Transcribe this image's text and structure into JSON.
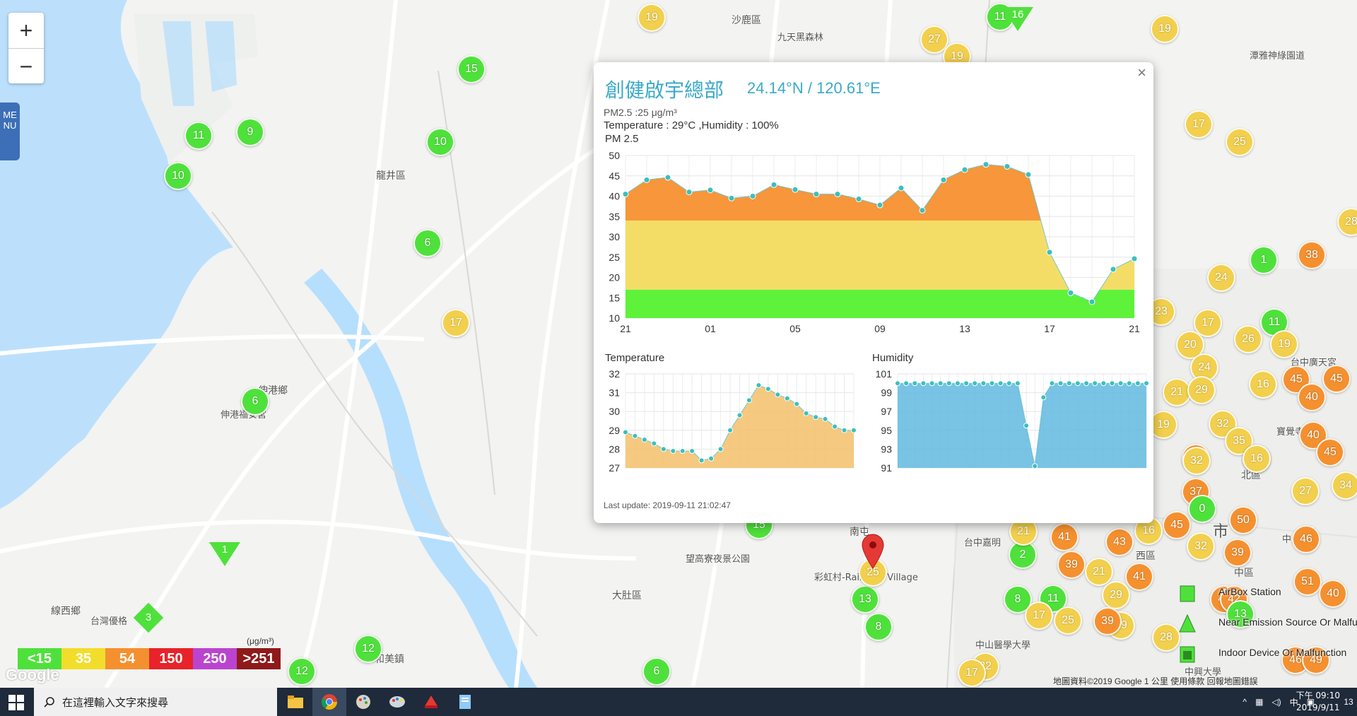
{
  "map": {
    "zoom_in_label": "+",
    "zoom_out_label": "−",
    "menu_label": "MENU",
    "places": [
      {
        "id": "shalu",
        "text": "沙鹿區"
      },
      {
        "id": "jiuhei",
        "text": "九天黑森林"
      },
      {
        "id": "longjing",
        "text": "龍井區"
      },
      {
        "id": "shengang",
        "text": "伸港鄉"
      },
      {
        "id": "shengang2",
        "text": "伸港福安宮"
      },
      {
        "id": "xianxi",
        "text": "線西鄉"
      },
      {
        "id": "taiwanyou",
        "text": "台灣優格"
      },
      {
        "id": "hemei",
        "text": "和美鎮"
      },
      {
        "id": "dadu",
        "text": "大肚區"
      },
      {
        "id": "wanggao",
        "text": "望高寮夜景公園"
      },
      {
        "id": "rainbow",
        "text": "彩虹村-Rainbow Village"
      },
      {
        "id": "nan",
        "text": "南屯"
      },
      {
        "id": "xiqu",
        "text": "西區"
      },
      {
        "id": "beiqu",
        "text": "北區"
      },
      {
        "id": "shi",
        "text": "市"
      },
      {
        "id": "zhongqu",
        "text": "中區"
      },
      {
        "id": "taizhong_jiayi",
        "text": "台中嘉明"
      },
      {
        "id": "zhongshan",
        "text": "中山醫學大學"
      },
      {
        "id": "zhongxing",
        "text": "中興大學"
      },
      {
        "id": "baojue",
        "text": "寶覺寺"
      },
      {
        "id": "zhonggong",
        "text": "中公園"
      },
      {
        "id": "taizhongguang",
        "text": "台中廣天宮"
      },
      {
        "id": "tanya",
        "text": "潭雅神綠園道"
      }
    ],
    "markers": [
      {
        "v": "19",
        "c": "y"
      },
      {
        "v": "11",
        "c": "g"
      },
      {
        "v": "27",
        "c": "y"
      },
      {
        "v": "19",
        "c": "y"
      },
      {
        "v": "19",
        "c": "y"
      },
      {
        "v": "15",
        "c": "g"
      },
      {
        "v": "11",
        "c": "g"
      },
      {
        "v": "9",
        "c": "g"
      },
      {
        "v": "10",
        "c": "g"
      },
      {
        "v": "10",
        "c": "g"
      },
      {
        "v": "6",
        "c": "g"
      },
      {
        "v": "17",
        "c": "y"
      },
      {
        "v": "6",
        "c": "g"
      },
      {
        "v": "17",
        "c": "y"
      },
      {
        "v": "25",
        "c": "y"
      },
      {
        "v": "1",
        "c": "g"
      },
      {
        "v": "38",
        "c": "o"
      },
      {
        "v": "24",
        "c": "y"
      },
      {
        "v": "23",
        "c": "y"
      },
      {
        "v": "17",
        "c": "y"
      },
      {
        "v": "11",
        "c": "g"
      },
      {
        "v": "26",
        "c": "y"
      },
      {
        "v": "20",
        "c": "y"
      },
      {
        "v": "19",
        "c": "y"
      },
      {
        "v": "24",
        "c": "y"
      },
      {
        "v": "16",
        "c": "y"
      },
      {
        "v": "45",
        "c": "o"
      },
      {
        "v": "45",
        "c": "o"
      },
      {
        "v": "40",
        "c": "o"
      },
      {
        "v": "21",
        "c": "y"
      },
      {
        "v": "29",
        "c": "y"
      },
      {
        "v": "19",
        "c": "y"
      },
      {
        "v": "32",
        "c": "y"
      },
      {
        "v": "35",
        "c": "y"
      },
      {
        "v": "40",
        "c": "o"
      },
      {
        "v": "45",
        "c": "o"
      },
      {
        "v": "36",
        "c": "o"
      },
      {
        "v": "32",
        "c": "y"
      },
      {
        "v": "16",
        "c": "y"
      },
      {
        "v": "37",
        "c": "o"
      },
      {
        "v": "0",
        "c": "g"
      },
      {
        "v": "32",
        "c": "y"
      },
      {
        "v": "27",
        "c": "y"
      },
      {
        "v": "45",
        "c": "o"
      },
      {
        "v": "50",
        "c": "o"
      },
      {
        "v": "16",
        "c": "y"
      },
      {
        "v": "46",
        "c": "o"
      },
      {
        "v": "39",
        "c": "o"
      },
      {
        "v": "43",
        "c": "o"
      },
      {
        "v": "41",
        "c": "o"
      },
      {
        "v": "39",
        "c": "o"
      },
      {
        "v": "2",
        "c": "g"
      },
      {
        "v": "21",
        "c": "y"
      },
      {
        "v": "21",
        "c": "y"
      },
      {
        "v": "41",
        "c": "o"
      },
      {
        "v": "51",
        "c": "o"
      },
      {
        "v": "40",
        "c": "o"
      },
      {
        "v": "29",
        "c": "y"
      },
      {
        "v": "29",
        "c": "y"
      },
      {
        "v": "39",
        "c": "o"
      },
      {
        "v": "28",
        "c": "y"
      },
      {
        "v": "42",
        "c": "o"
      },
      {
        "v": "8",
        "c": "g"
      },
      {
        "v": "11",
        "c": "g"
      },
      {
        "v": "17",
        "c": "y"
      },
      {
        "v": "25",
        "c": "y"
      },
      {
        "v": "13",
        "c": "g"
      },
      {
        "v": "8",
        "c": "g"
      },
      {
        "v": "25",
        "c": "y"
      },
      {
        "v": "15",
        "c": "g"
      },
      {
        "v": "12",
        "c": "g"
      },
      {
        "v": "12",
        "c": "g"
      },
      {
        "v": "6",
        "c": "g"
      },
      {
        "v": "22",
        "c": "y"
      },
      {
        "v": "17",
        "c": "y"
      },
      {
        "v": "46",
        "c": "o"
      },
      {
        "v": "49",
        "c": "o"
      },
      {
        "v": "34",
        "c": "y"
      },
      {
        "v": "28",
        "c": "y"
      },
      {
        "v": "42",
        "c": "o"
      },
      {
        "v": "13",
        "c": "g"
      },
      {
        "v": "16",
        "c": "y"
      }
    ],
    "triangles": [
      "16",
      "1"
    ],
    "diamond": "3",
    "legend": [
      {
        "label": "<15",
        "color": "#4fe13b"
      },
      {
        "label": "35",
        "color": "#f3dd2b"
      },
      {
        "label": "54",
        "color": "#f5902f"
      },
      {
        "label": "150",
        "color": "#e8232a"
      },
      {
        "label": "250",
        "color": "#bb44cf"
      },
      {
        "label": ">251",
        "color": "#8f1a1a"
      }
    ],
    "legend_unit": "(μg/m³)",
    "map_legend": [
      {
        "label": "AirBox Station"
      },
      {
        "label": "Near Emission Source Or Malfunction"
      },
      {
        "label": "Indoor Device Or Malfunction"
      }
    ],
    "attribution": "地圖資料©2019 Google   1 公里          使用條款   回報地圖錯誤",
    "google_logo": "Google"
  },
  "popup": {
    "close_label": "×",
    "title": "創健啟宇總部",
    "coords": "24.14°N / 120.61°E",
    "pm_line": "PM2.5 :25 μg/m³",
    "temp_hum_line": "Temperature : 29°C ,Humidity : 100%",
    "pm_chart_title": "PM 2.5",
    "temp_chart_title": "Temperature",
    "hum_chart_title": "Humidity",
    "last_update": "Last update: 2019-09-11 21:02:47"
  },
  "chart_data": [
    {
      "type": "area",
      "title": "PM 2.5",
      "x_tick_labels": [
        "21",
        "01",
        "05",
        "09",
        "13",
        "17",
        "21"
      ],
      "y_ticks": [
        10,
        15,
        20,
        25,
        30,
        35,
        40,
        45,
        50
      ],
      "ylim": [
        10,
        50
      ],
      "x": [
        0,
        1,
        2,
        3,
        4,
        5,
        6,
        7,
        8,
        9,
        10,
        11,
        12,
        13,
        14,
        15,
        16,
        17,
        18,
        19,
        20,
        21,
        22,
        23,
        24
      ],
      "values": [
        40.5,
        44,
        44.6,
        41,
        41.5,
        39.5,
        40,
        42.8,
        41.6,
        40.5,
        40.5,
        39.3,
        37.8,
        42,
        36.5,
        44,
        46.5,
        47.8,
        47.3,
        45.3,
        26.2,
        16.2,
        14,
        22,
        24.6
      ],
      "bands": [
        {
          "from": 10,
          "to": 17,
          "color": "#5ef23a"
        },
        {
          "from": 17,
          "to": 34,
          "color": "#f4dd67"
        },
        {
          "from": 34,
          "to": 50,
          "color": "#f7963a"
        }
      ],
      "grid": true
    },
    {
      "type": "area",
      "title": "Temperature",
      "y_ticks": [
        27,
        28,
        29,
        30,
        31,
        32
      ],
      "ylim": [
        27,
        32
      ],
      "values": [
        28.9,
        28.7,
        28.5,
        28.3,
        28.0,
        27.9,
        27.9,
        27.9,
        27.4,
        27.5,
        28.0,
        29.0,
        29.8,
        30.6,
        31.4,
        31.2,
        30.9,
        30.7,
        30.4,
        29.9,
        29.7,
        29.6,
        29.2,
        29.0,
        29.0
      ],
      "color": "#f5bf6a",
      "grid": true
    },
    {
      "type": "area",
      "title": "Humidity",
      "y_ticks": [
        91,
        93,
        95,
        97,
        99,
        101
      ],
      "ylim": [
        91,
        101
      ],
      "values": [
        100,
        100,
        100,
        100,
        100,
        100,
        100,
        100,
        100,
        100,
        100,
        100,
        100,
        100,
        100,
        95.5,
        91.2,
        98.5,
        100,
        100,
        100,
        100,
        100,
        100,
        100,
        100,
        100,
        100,
        100,
        100
      ],
      "color": "#62b8e0",
      "grid": true
    }
  ],
  "taskbar": {
    "search_placeholder": "在這裡輸入文字來搜尋",
    "time": "下午 09:10",
    "date": "2019/9/11",
    "ime": "中",
    "notifications": "13"
  }
}
